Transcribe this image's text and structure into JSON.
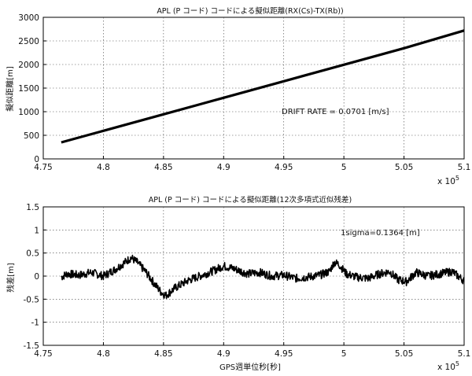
{
  "chart_data": [
    {
      "type": "line",
      "title": "APL (P コード) コードによる擬似距離(RX(Cs)-TX(Rb))",
      "xlabel": "",
      "ylabel": "擬似距離[m]",
      "xlim": [
        475000,
        510000
      ],
      "ylim": [
        0,
        3000
      ],
      "x_ticks": [
        4.75,
        4.8,
        4.85,
        4.9,
        4.95,
        5.0,
        5.05,
        5.1
      ],
      "x_tick_labels": [
        "4.75",
        "4.8",
        "4.85",
        "4.9",
        "4.95",
        "5",
        "5.05",
        "5.1"
      ],
      "y_ticks": [
        0,
        500,
        1000,
        1500,
        2000,
        2500,
        3000
      ],
      "y_tick_labels": [
        "0",
        "500",
        "1000",
        "1500",
        "2000",
        "2500",
        "3000"
      ],
      "x_multiplier": "x 10",
      "x_exponent": "5",
      "grid": true,
      "annotation": "DRIFT RATE = 0.0701 [m/s]",
      "series": [
        {
          "x": [
            476500,
            480000,
            485000,
            490000,
            495000,
            500000,
            505000,
            510000
          ],
          "y": [
            350,
            595,
            945,
            1295,
            1645,
            1995,
            2345,
            2720
          ],
          "color": "#000000"
        }
      ]
    },
    {
      "type": "line",
      "title": "APL (P コード) コードによる擬似距離(12次多項式近似残差)",
      "xlabel": "GPS週単位秒[秒]",
      "ylabel": "残差[m]",
      "xlim": [
        475000,
        510000
      ],
      "ylim": [
        -1.5,
        1.5
      ],
      "x_ticks": [
        4.75,
        4.8,
        4.85,
        4.9,
        4.95,
        5.0,
        5.05,
        5.1
      ],
      "x_tick_labels": [
        "4.75",
        "4.8",
        "4.85",
        "4.9",
        "4.95",
        "5",
        "5.05",
        "5.1"
      ],
      "y_ticks": [
        -1.5,
        -1,
        -0.5,
        0,
        0.5,
        1,
        1.5
      ],
      "y_tick_labels": [
        "-1.5",
        "-1",
        "-0.5",
        "0",
        "0.5",
        "1",
        "1.5"
      ],
      "x_multiplier": "x 10",
      "x_exponent": "5",
      "grid": true,
      "annotation": "1sigma=0.1364 [m]",
      "series": [
        {
          "x": [
            476500,
            477000,
            478000,
            479000,
            480000,
            481000,
            481800,
            482300,
            482800,
            483500,
            484200,
            484800,
            485200,
            486000,
            487000,
            488000,
            489000,
            490000,
            491000,
            492000,
            493000,
            494000,
            495000,
            496000,
            497000,
            498000,
            498800,
            499200,
            499600,
            500200,
            501000,
            502000,
            503000,
            503800,
            504500,
            505200,
            506000,
            507000,
            508000,
            509000,
            510000
          ],
          "y": [
            -0.02,
            0.05,
            0.02,
            0.08,
            0.0,
            0.15,
            0.3,
            0.4,
            0.3,
            0.1,
            -0.15,
            -0.35,
            -0.42,
            -0.25,
            -0.1,
            0.0,
            0.1,
            0.22,
            0.15,
            0.05,
            0.08,
            0.0,
            0.02,
            -0.05,
            -0.02,
            0.02,
            0.1,
            0.3,
            0.25,
            0.05,
            -0.02,
            -0.05,
            0.05,
            0.1,
            -0.08,
            -0.12,
            0.08,
            0.0,
            0.05,
            0.1,
            -0.1
          ],
          "noise": 0.09,
          "color": "#000000"
        }
      ]
    }
  ]
}
